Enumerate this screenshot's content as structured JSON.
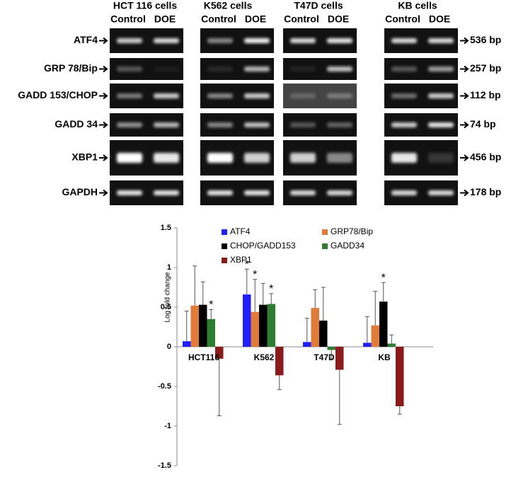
{
  "gel": {
    "cell_lines": [
      "HCT 116 cells",
      "K562 cells",
      "T47D cells",
      "KB cells"
    ],
    "lane_labels": [
      [
        "Control",
        "DOE"
      ],
      [
        "Control",
        "DOE"
      ],
      [
        "Control",
        "DOE"
      ],
      [
        "Control",
        "DOE"
      ]
    ],
    "genes": [
      "ATF4",
      "GRP 78/Bip",
      "GADD 153/CHOP",
      "GADD 34",
      "XBP1",
      "GAPDH"
    ],
    "sizes": [
      "536 bp",
      "257 bp",
      "112 bp",
      "74 bp",
      "456 bp",
      "178 bp"
    ]
  },
  "chart_data": {
    "type": "bar",
    "ylabel": "Log fold change",
    "categories": [
      "HCT116",
      "K562",
      "T47D",
      "KB"
    ],
    "ylim": [
      -1.5,
      1.5
    ],
    "yticks": [
      1.5,
      1,
      0.5,
      0,
      -0.5,
      -1,
      -1.5
    ],
    "series": [
      {
        "name": "ATF4",
        "color": "#2020ff",
        "values": [
          0.07,
          0.66,
          0.06,
          0.05
        ],
        "errors": [
          0.38,
          0.32,
          0.3,
          0.33
        ],
        "annotations": [
          null,
          "*",
          null,
          null
        ]
      },
      {
        "name": "GRP78/Bip",
        "color": "#e07b39",
        "values": [
          0.52,
          0.44,
          0.49,
          0.27
        ],
        "errors": [
          0.5,
          0.41,
          0.23,
          0.43
        ],
        "annotations": [
          null,
          "*",
          null,
          null
        ]
      },
      {
        "name": "CHOP/GADD153",
        "color": "#000000",
        "values": [
          0.53,
          0.53,
          0.33,
          0.57
        ],
        "errors": [
          0.29,
          0.27,
          0.42,
          0.24
        ],
        "annotations": [
          null,
          null,
          null,
          "*"
        ]
      },
      {
        "name": "GADD34",
        "color": "#2e7d32",
        "values": [
          0.35,
          0.54,
          -0.04,
          0.04
        ],
        "errors": [
          0.12,
          0.13,
          0.11,
          0.11
        ],
        "annotations": [
          "*",
          "*",
          null,
          null
        ]
      },
      {
        "name": "XBP1",
        "color": "#8b1a1a",
        "values": [
          -0.15,
          -0.36,
          -0.29,
          -0.75
        ],
        "errors": [
          0.72,
          0.18,
          0.69,
          0.1
        ],
        "annotations": [
          null,
          null,
          null,
          null
        ]
      }
    ]
  }
}
